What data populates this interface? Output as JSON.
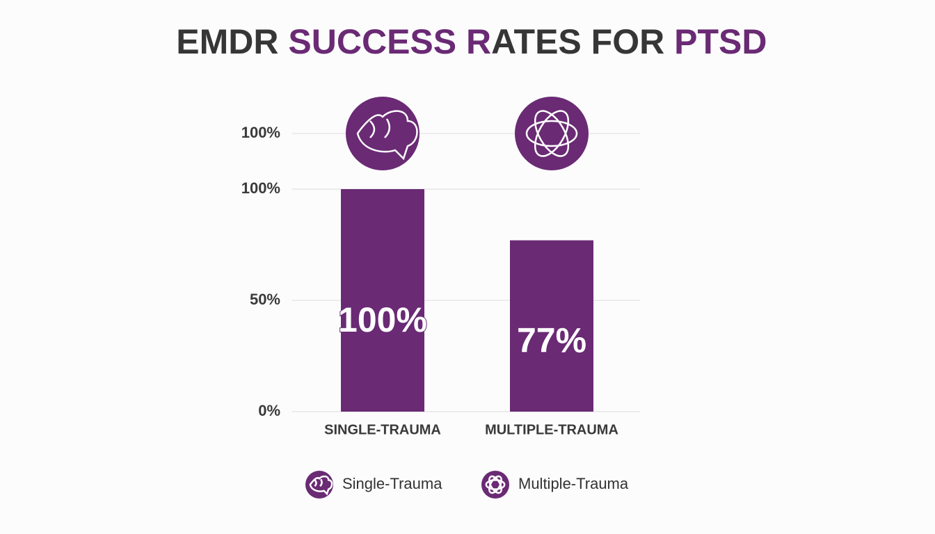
{
  "chart_data": {
    "type": "bar",
    "title_parts": [
      {
        "text": "EMDR ",
        "color": "#363636"
      },
      {
        "text": "SUCCESS R",
        "color": "#6a2a74"
      },
      {
        "text": "ATES FOR ",
        "color": "#363636"
      },
      {
        "text": "PTSD",
        "color": "#6a2a74"
      }
    ],
    "categories": [
      "SINGLE-TRAUMA",
      "MULTIPLE-TRAUMA"
    ],
    "legend": [
      "Single-Trauma",
      "Multiple-Trauma"
    ],
    "values": [
      100,
      77
    ],
    "value_labels": [
      "100%",
      "77%"
    ],
    "color": "#6a2a74",
    "ylim": [
      0,
      100
    ],
    "yticks": [
      {
        "value": 0,
        "label": "0%"
      },
      {
        "value": 50,
        "label": "50%"
      },
      {
        "value": 100,
        "label": "100%"
      }
    ],
    "y_axis_top_label": "100%",
    "grid": true
  }
}
